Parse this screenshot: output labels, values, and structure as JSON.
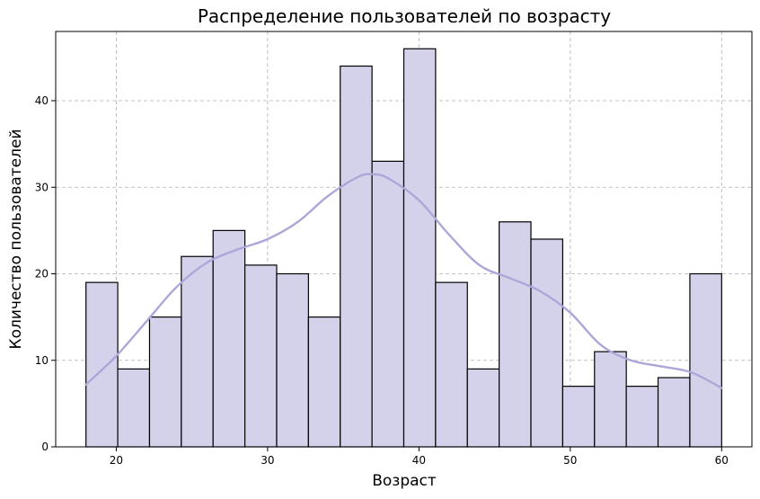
{
  "chart_data": {
    "type": "bar",
    "title": "Распределение пользователей по возрасту",
    "xlabel": "Возраст",
    "ylabel": "Количество пользователей",
    "xlim": [
      16,
      62
    ],
    "ylim": [
      0,
      48
    ],
    "xticks": [
      20,
      30,
      40,
      50,
      60
    ],
    "yticks": [
      0,
      10,
      20,
      30,
      40
    ],
    "grid": true,
    "bin_edges": [
      18,
      20.1,
      22.2,
      24.3,
      26.4,
      28.5,
      30.6,
      32.7,
      34.8,
      36.9,
      39.0,
      41.1,
      43.2,
      45.3,
      47.4,
      49.5,
      51.6,
      53.7,
      55.8,
      57.9,
      60
    ],
    "values": [
      19,
      9,
      15,
      22,
      25,
      21,
      20,
      15,
      44,
      33,
      46,
      19,
      9,
      26,
      24,
      7,
      11,
      7,
      8,
      20
    ],
    "kde": {
      "x": [
        18,
        20,
        22,
        24,
        26,
        28,
        30,
        32,
        34,
        36,
        37,
        38,
        40,
        42,
        44,
        46,
        48,
        50,
        52,
        54,
        56,
        58,
        60
      ],
      "y": [
        7.2,
        10.5,
        14.5,
        18.5,
        21.3,
        22.8,
        24,
        26,
        29,
        31.2,
        31.5,
        31,
        28.5,
        24.5,
        21,
        19.5,
        18,
        15.5,
        11.8,
        10,
        9.3,
        8.6,
        6.8
      ]
    },
    "colors": {
      "bar_fill": "#d4d2ea",
      "kde_line": "#aba7d8"
    }
  }
}
